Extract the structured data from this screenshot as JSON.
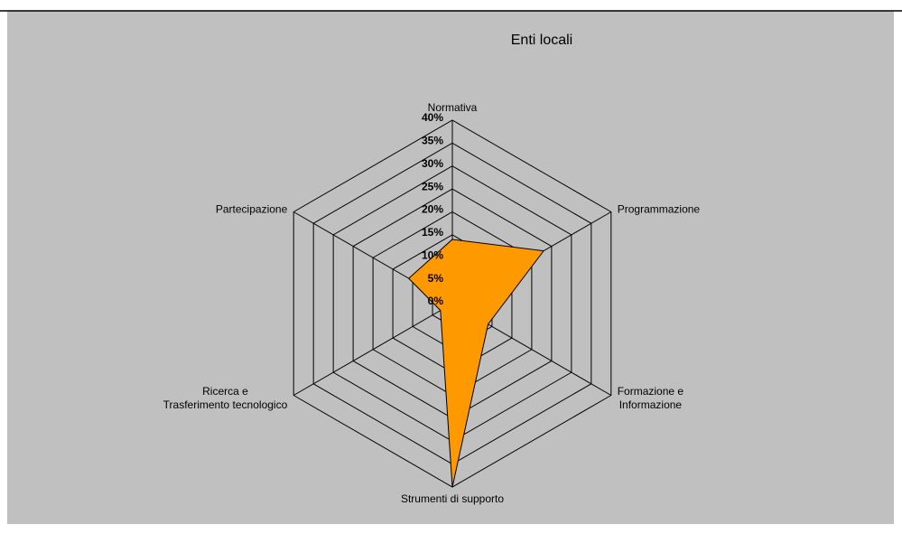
{
  "chart_data": {
    "type": "radar",
    "title": "Enti locali",
    "categories": [
      "Normativa",
      "Programmazione",
      "Formazione e\nInformazione",
      "Strumenti di supporto",
      "Ricerca e\nTrasferimento tecnologico",
      "Partecipazione"
    ],
    "series": [
      {
        "color": "#ff9900",
        "values": [
          14,
          23,
          9,
          40,
          3,
          11
        ]
      }
    ],
    "ylim": [
      0,
      40
    ],
    "yticks": [
      {
        "value": 0,
        "label": "0%"
      },
      {
        "value": 5,
        "label": "5%"
      },
      {
        "value": 10,
        "label": "10%"
      },
      {
        "value": 15,
        "label": "15%"
      },
      {
        "value": 20,
        "label": "20%"
      },
      {
        "value": 25,
        "label": "25%"
      },
      {
        "value": 30,
        "label": "30%"
      },
      {
        "value": 35,
        "label": "35%"
      },
      {
        "value": 40,
        "label": "40%"
      }
    ],
    "grid": true
  }
}
